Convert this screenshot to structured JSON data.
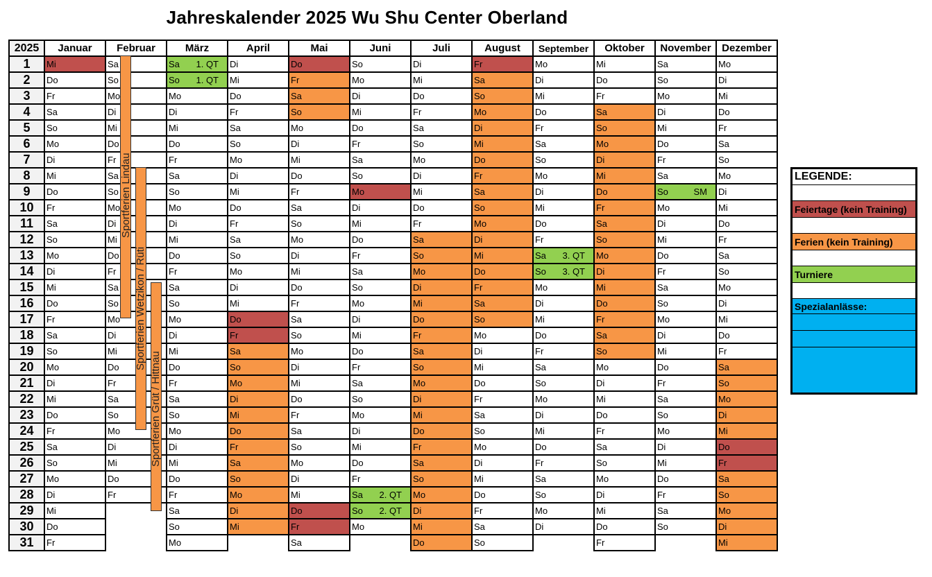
{
  "title": "Jahreskalender 2025 Wu Shu Center Oberland",
  "year": "2025",
  "colors": {
    "holiday": "#c0504d",
    "vacation": "#f79646",
    "tournament": "#92d050",
    "special": "#00b0f0"
  },
  "months": [
    {
      "name": "Januar",
      "days": [
        "Mi",
        "Do",
        "Fr",
        "Sa",
        "So",
        "Mo",
        "Di",
        "Mi",
        "Do",
        "Fr",
        "Sa",
        "So",
        "Mo",
        "Di",
        "Mi",
        "Do",
        "Fr",
        "Sa",
        "So",
        "Mo",
        "Di",
        "Mi",
        "Do",
        "Fr",
        "Sa",
        "So",
        "Mo",
        "Di",
        "Mi",
        "Do",
        "Fr"
      ],
      "marks": {
        "1": "holiday"
      },
      "notes": {}
    },
    {
      "name": "Februar",
      "days": [
        "Sa",
        "So",
        "Mo",
        "Di",
        "Mi",
        "Do",
        "Fr",
        "Sa",
        "So",
        "Mo",
        "Di",
        "Mi",
        "Do",
        "Fr",
        "Sa",
        "So",
        "Mo",
        "Di",
        "Mi",
        "Do",
        "Fr",
        "Sa",
        "So",
        "Mo",
        "Di",
        "Mi",
        "Do",
        "Fr"
      ],
      "marks": {},
      "notes": {}
    },
    {
      "name": "März",
      "days": [
        "Sa",
        "So",
        "Mo",
        "Di",
        "Mi",
        "Do",
        "Fr",
        "Sa",
        "So",
        "Mo",
        "Di",
        "Mi",
        "Do",
        "Fr",
        "Sa",
        "So",
        "Mo",
        "Di",
        "Mi",
        "Do",
        "Fr",
        "Sa",
        "So",
        "Mo",
        "Di",
        "Mi",
        "Do",
        "Fr",
        "Sa",
        "So",
        "Mo"
      ],
      "marks": {
        "1": "tournament",
        "2": "tournament"
      },
      "notes": {
        "1": "1. QT",
        "2": "1. QT"
      }
    },
    {
      "name": "April",
      "days": [
        "Di",
        "Mi",
        "Do",
        "Fr",
        "Sa",
        "So",
        "Mo",
        "Di",
        "Mi",
        "Do",
        "Fr",
        "Sa",
        "So",
        "Mo",
        "Di",
        "Mi",
        "Do",
        "Fr",
        "Sa",
        "So",
        "Mo",
        "Di",
        "Mi",
        "Do",
        "Fr",
        "Sa",
        "So",
        "Mo",
        "Di",
        "Mi"
      ],
      "marks": {
        "17": "holiday",
        "18": "holiday",
        "19": "vacation",
        "20": "vacation",
        "21": "vacation",
        "22": "vacation",
        "23": "vacation",
        "24": "vacation",
        "25": "vacation",
        "26": "vacation",
        "27": "vacation",
        "28": "vacation",
        "29": "vacation",
        "30": "vacation"
      },
      "notes": {}
    },
    {
      "name": "Mai",
      "days": [
        "Do",
        "Fr",
        "Sa",
        "So",
        "Mo",
        "Di",
        "Mi",
        "Do",
        "Fr",
        "Sa",
        "So",
        "Mo",
        "Di",
        "Mi",
        "Do",
        "Fr",
        "Sa",
        "So",
        "Mo",
        "Di",
        "Mi",
        "Do",
        "Fr",
        "Sa",
        "So",
        "Mo",
        "Di",
        "Mi",
        "Do",
        "Fr",
        "Sa"
      ],
      "marks": {
        "1": "holiday",
        "2": "vacation",
        "3": "vacation",
        "4": "vacation",
        "29": "holiday",
        "30": "holiday"
      },
      "notes": {}
    },
    {
      "name": "Juni",
      "days": [
        "So",
        "Mo",
        "Di",
        "Mi",
        "Do",
        "Fr",
        "Sa",
        "So",
        "Mo",
        "Di",
        "Mi",
        "Do",
        "Fr",
        "Sa",
        "So",
        "Mo",
        "Di",
        "Mi",
        "Do",
        "Fr",
        "Sa",
        "So",
        "Mo",
        "Di",
        "Mi",
        "Do",
        "Fr",
        "Sa",
        "So",
        "Mo"
      ],
      "marks": {
        "9": "holiday",
        "28": "tournament",
        "29": "tournament"
      },
      "notes": {
        "28": "2. QT",
        "29": "2. QT"
      }
    },
    {
      "name": "Juli",
      "days": [
        "Di",
        "Mi",
        "Do",
        "Fr",
        "Sa",
        "So",
        "Mo",
        "Di",
        "Mi",
        "Do",
        "Fr",
        "Sa",
        "So",
        "Mo",
        "Di",
        "Mi",
        "Do",
        "Fr",
        "Sa",
        "So",
        "Mo",
        "Di",
        "Mi",
        "Do",
        "Fr",
        "Sa",
        "So",
        "Mo",
        "Di",
        "Mi",
        "Do"
      ],
      "marks": {
        "12": "vacation",
        "13": "vacation",
        "14": "vacation",
        "15": "vacation",
        "16": "vacation",
        "17": "vacation",
        "18": "vacation",
        "19": "vacation",
        "20": "vacation",
        "21": "vacation",
        "22": "vacation",
        "23": "vacation",
        "24": "vacation",
        "25": "vacation",
        "26": "vacation",
        "27": "vacation",
        "28": "vacation",
        "29": "vacation",
        "30": "vacation",
        "31": "vacation"
      },
      "notes": {}
    },
    {
      "name": "August",
      "days": [
        "Fr",
        "Sa",
        "So",
        "Mo",
        "Di",
        "Mi",
        "Do",
        "Fr",
        "Sa",
        "So",
        "Mo",
        "Di",
        "Mi",
        "Do",
        "Fr",
        "Sa",
        "So",
        "Mo",
        "Di",
        "Mi",
        "Do",
        "Fr",
        "Sa",
        "So",
        "Mo",
        "Di",
        "Mi",
        "Do",
        "Fr",
        "Sa",
        "So"
      ],
      "marks": {
        "1": "holiday",
        "2": "vacation",
        "3": "vacation",
        "4": "vacation",
        "5": "vacation",
        "6": "vacation",
        "7": "vacation",
        "8": "vacation",
        "9": "vacation",
        "10": "vacation",
        "11": "vacation",
        "12": "vacation",
        "13": "vacation",
        "14": "vacation",
        "15": "vacation",
        "16": "vacation",
        "17": "vacation"
      },
      "notes": {}
    },
    {
      "name": "September",
      "days": [
        "Mo",
        "Di",
        "Mi",
        "Do",
        "Fr",
        "Sa",
        "So",
        "Mo",
        "Di",
        "Mi",
        "Do",
        "Fr",
        "Sa",
        "So",
        "Mo",
        "Di",
        "Mi",
        "Do",
        "Fr",
        "Sa",
        "So",
        "Mo",
        "Di",
        "Mi",
        "Do",
        "Fr",
        "Sa",
        "So",
        "Mo",
        "Di"
      ],
      "marks": {
        "13": "tournament",
        "14": "tournament"
      },
      "notes": {
        "13": "3. QT",
        "14": "3. QT"
      }
    },
    {
      "name": "Oktober",
      "days": [
        "Mi",
        "Do",
        "Fr",
        "Sa",
        "So",
        "Mo",
        "Di",
        "Mi",
        "Do",
        "Fr",
        "Sa",
        "So",
        "Mo",
        "Di",
        "Mi",
        "Do",
        "Fr",
        "Sa",
        "So",
        "Mo",
        "Di",
        "Mi",
        "Do",
        "Fr",
        "Sa",
        "So",
        "Mo",
        "Di",
        "Mi",
        "Do",
        "Fr"
      ],
      "marks": {
        "4": "vacation",
        "5": "vacation",
        "6": "vacation",
        "7": "vacation",
        "8": "vacation",
        "9": "vacation",
        "10": "vacation",
        "11": "vacation",
        "12": "vacation",
        "13": "vacation",
        "14": "vacation",
        "15": "vacation",
        "16": "vacation",
        "17": "vacation",
        "18": "vacation",
        "19": "vacation"
      },
      "notes": {}
    },
    {
      "name": "November",
      "days": [
        "Sa",
        "So",
        "Mo",
        "Di",
        "Mi",
        "Do",
        "Fr",
        "Sa",
        "So",
        "Mo",
        "Di",
        "Mi",
        "Do",
        "Fr",
        "Sa",
        "So",
        "Mo",
        "Di",
        "Mi",
        "Do",
        "Fr",
        "Sa",
        "So",
        "Mo",
        "Di",
        "Mi",
        "Do",
        "Fr",
        "Sa",
        "So"
      ],
      "marks": {
        "9": "tournament"
      },
      "notes": {
        "9": "SM"
      }
    },
    {
      "name": "Dezember",
      "days": [
        "Mo",
        "Di",
        "Mi",
        "Do",
        "Fr",
        "Sa",
        "So",
        "Mo",
        "Di",
        "Mi",
        "Do",
        "Fr",
        "Sa",
        "So",
        "Mo",
        "Di",
        "Mi",
        "Do",
        "Fr",
        "Sa",
        "So",
        "Mo",
        "Di",
        "Mi",
        "Do",
        "Fr",
        "Sa",
        "So",
        "Mo",
        "Di",
        "Mi"
      ],
      "marks": {
        "20": "vacation",
        "21": "vacation",
        "22": "vacation",
        "23": "vacation",
        "24": "vacation",
        "25": "holiday",
        "26": "holiday",
        "27": "vacation",
        "28": "vacation",
        "29": "vacation",
        "30": "vacation",
        "31": "vacation"
      },
      "notes": {}
    }
  ],
  "sport_vacations": [
    {
      "label": "Sportferien Lindau"
    },
    {
      "label": "Sportferien Wetzikon / Rüti"
    },
    {
      "label": "Sportferien Grüt / Hittnau"
    }
  ],
  "legend": {
    "heading": "LEGENDE:",
    "holiday": "Feiertage (kein Training)",
    "vacation": "Ferien (kein Training)",
    "tournament": "Turniere",
    "special": "Spezialanlässe:"
  }
}
